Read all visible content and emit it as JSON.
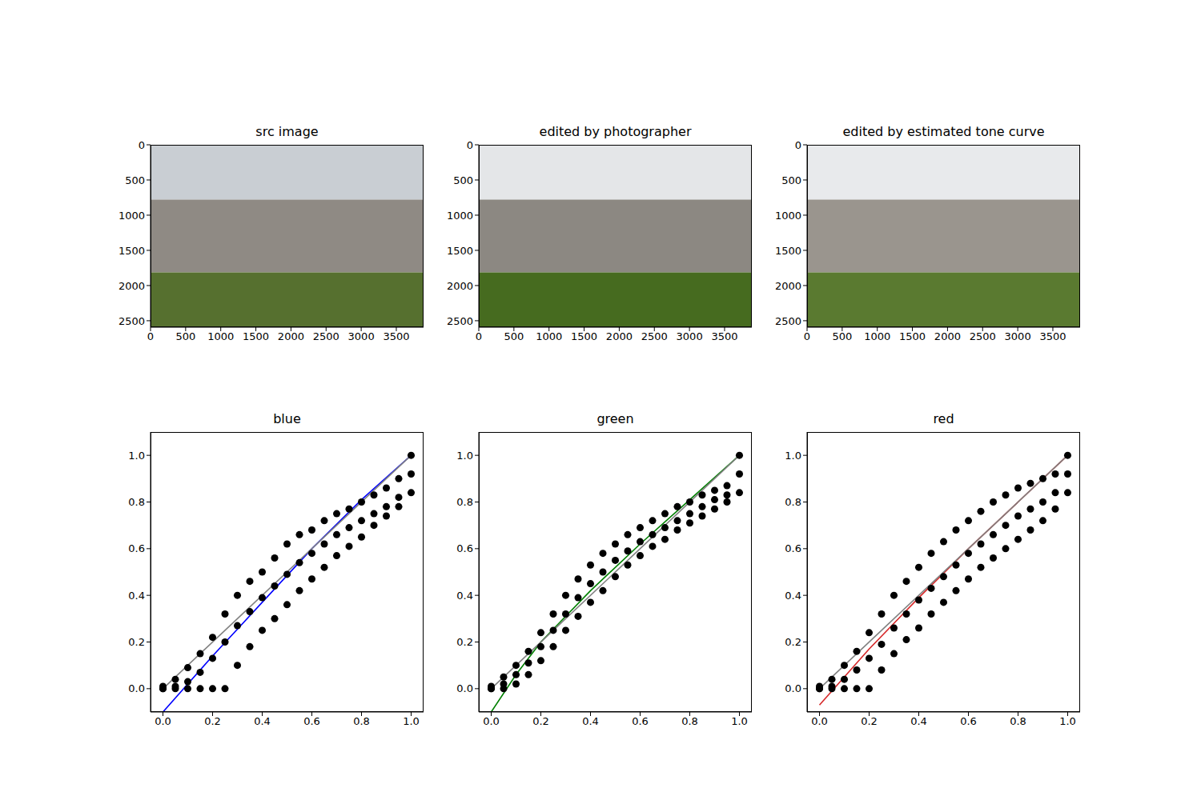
{
  "chart_data": [
    {
      "type": "image",
      "title": "src image",
      "xlim": [
        0,
        3888
      ],
      "ylim": [
        2592,
        0
      ],
      "xticks": [
        0,
        500,
        1000,
        1500,
        2000,
        2500,
        3000,
        3500
      ],
      "yticks": [
        0,
        500,
        1000,
        1500,
        2000,
        2500
      ]
    },
    {
      "type": "image",
      "title": "edited by photographer",
      "xlim": [
        0,
        3888
      ],
      "ylim": [
        2592,
        0
      ],
      "xticks": [
        0,
        500,
        1000,
        1500,
        2000,
        2500,
        3000,
        3500
      ],
      "yticks": [
        0,
        500,
        1000,
        1500,
        2000,
        2500
      ]
    },
    {
      "type": "image",
      "title": "edited by estimated tone curve",
      "xlim": [
        0,
        3888
      ],
      "ylim": [
        2592,
        0
      ],
      "xticks": [
        0,
        500,
        1000,
        1500,
        2000,
        2500,
        3000,
        3500
      ],
      "yticks": [
        0,
        500,
        1000,
        1500,
        2000,
        2500
      ]
    },
    {
      "type": "scatter",
      "title": "blue",
      "xlim": [
        -0.05,
        1.05
      ],
      "ylim": [
        -0.1,
        1.1
      ],
      "xticks": [
        {
          "value": 0,
          "label": "0.0"
        },
        0.2,
        0.4,
        0.6,
        0.8,
        {
          "value": 1,
          "label": "1.0"
        }
      ],
      "yticks": [
        {
          "value": 0,
          "label": "0.0"
        },
        0.2,
        0.4,
        0.6,
        0.8,
        {
          "value": 1,
          "label": "1.0"
        }
      ],
      "series": [
        {
          "type": "scatter",
          "marker": "circle",
          "color": "#000000",
          "x": [
            0,
            0,
            0,
            0.05,
            0.05,
            0.05,
            0.1,
            0.1,
            0.1,
            0.15,
            0.15,
            0.15,
            0.2,
            0.2,
            0.2,
            0.25,
            0.25,
            0.25,
            0.3,
            0.3,
            0.3,
            0.35,
            0.35,
            0.35,
            0.4,
            0.4,
            0.4,
            0.45,
            0.45,
            0.45,
            0.5,
            0.5,
            0.5,
            0.55,
            0.55,
            0.55,
            0.6,
            0.6,
            0.6,
            0.65,
            0.65,
            0.65,
            0.7,
            0.7,
            0.7,
            0.75,
            0.75,
            0.75,
            0.8,
            0.8,
            0.8,
            0.85,
            0.85,
            0.85,
            0.9,
            0.9,
            0.9,
            0.95,
            0.95,
            0.95,
            1,
            1,
            1
          ],
          "values": [
            0,
            0,
            0.01,
            0,
            0.01,
            0.04,
            0,
            0.03,
            0.09,
            0,
            0.07,
            0.15,
            0,
            0.13,
            0.22,
            0,
            0.2,
            0.32,
            0.1,
            0.27,
            0.4,
            0.18,
            0.33,
            0.46,
            0.25,
            0.39,
            0.5,
            0.3,
            0.44,
            0.56,
            0.36,
            0.49,
            0.62,
            0.42,
            0.54,
            0.66,
            0.47,
            0.58,
            0.68,
            0.52,
            0.62,
            0.72,
            0.57,
            0.66,
            0.75,
            0.61,
            0.69,
            0.77,
            0.65,
            0.72,
            0.8,
            0.7,
            0.75,
            0.83,
            0.74,
            0.78,
            0.86,
            0.78,
            0.82,
            0.9,
            0.84,
            0.92,
            1
          ]
        },
        {
          "type": "line",
          "line_style": "solid",
          "color": "#0000ff",
          "x": [
            0,
            0.2,
            0.4,
            0.6,
            0.8,
            1
          ],
          "values": [
            -0.1,
            0.14,
            0.37,
            0.6,
            0.81,
            1
          ]
        },
        {
          "type": "line",
          "line_style": "solid",
          "color": "#808080",
          "x": [
            0,
            1
          ],
          "values": [
            0,
            1
          ]
        }
      ]
    },
    {
      "type": "scatter",
      "title": "green",
      "xlim": [
        -0.05,
        1.05
      ],
      "ylim": [
        -0.1,
        1.1
      ],
      "xticks": [
        {
          "value": 0,
          "label": "0.0"
        },
        0.2,
        0.4,
        0.6,
        0.8,
        {
          "value": 1,
          "label": "1.0"
        }
      ],
      "yticks": [
        {
          "value": 0,
          "label": "0.0"
        },
        0.2,
        0.4,
        0.6,
        0.8,
        {
          "value": 1,
          "label": "1.0"
        }
      ],
      "series": [
        {
          "type": "scatter",
          "marker": "circle",
          "color": "#000000",
          "x": [
            0,
            0,
            0,
            0.05,
            0.05,
            0.05,
            0.1,
            0.1,
            0.1,
            0.15,
            0.15,
            0.15,
            0.2,
            0.2,
            0.2,
            0.25,
            0.25,
            0.25,
            0.3,
            0.3,
            0.3,
            0.35,
            0.35,
            0.35,
            0.4,
            0.4,
            0.4,
            0.45,
            0.45,
            0.45,
            0.5,
            0.5,
            0.5,
            0.55,
            0.55,
            0.55,
            0.6,
            0.6,
            0.6,
            0.65,
            0.65,
            0.65,
            0.7,
            0.7,
            0.7,
            0.75,
            0.75,
            0.75,
            0.8,
            0.8,
            0.8,
            0.85,
            0.85,
            0.85,
            0.9,
            0.9,
            0.9,
            0.95,
            0.95,
            0.95,
            1,
            1,
            1
          ],
          "values": [
            0,
            0,
            0.01,
            0,
            0.02,
            0.05,
            0.02,
            0.06,
            0.1,
            0.06,
            0.11,
            0.16,
            0.12,
            0.18,
            0.24,
            0.18,
            0.25,
            0.32,
            0.25,
            0.32,
            0.4,
            0.31,
            0.39,
            0.47,
            0.37,
            0.45,
            0.53,
            0.42,
            0.5,
            0.58,
            0.48,
            0.55,
            0.62,
            0.53,
            0.59,
            0.66,
            0.57,
            0.63,
            0.69,
            0.61,
            0.66,
            0.72,
            0.64,
            0.69,
            0.75,
            0.68,
            0.72,
            0.78,
            0.71,
            0.75,
            0.8,
            0.74,
            0.78,
            0.83,
            0.77,
            0.81,
            0.85,
            0.8,
            0.83,
            0.87,
            0.84,
            0.92,
            1
          ]
        },
        {
          "type": "line",
          "line_style": "solid",
          "color": "#008000",
          "x": [
            0,
            0.1,
            0.2,
            0.4,
            0.6,
            0.8,
            1
          ],
          "values": [
            -0.1,
            0.06,
            0.2,
            0.42,
            0.62,
            0.81,
            1
          ]
        },
        {
          "type": "line",
          "line_style": "solid",
          "color": "#808080",
          "x": [
            0,
            1
          ],
          "values": [
            0,
            1
          ]
        }
      ]
    },
    {
      "type": "scatter",
      "title": "red",
      "xlim": [
        -0.05,
        1.05
      ],
      "ylim": [
        -0.1,
        1.1
      ],
      "xticks": [
        {
          "value": 0,
          "label": "0.0"
        },
        0.2,
        0.4,
        0.6,
        0.8,
        {
          "value": 1,
          "label": "1.0"
        }
      ],
      "yticks": [
        {
          "value": 0,
          "label": "0.0"
        },
        0.2,
        0.4,
        0.6,
        0.8,
        {
          "value": 1,
          "label": "1.0"
        }
      ],
      "series": [
        {
          "type": "scatter",
          "marker": "circle",
          "color": "#000000",
          "x": [
            0,
            0,
            0,
            0.05,
            0.05,
            0.05,
            0.1,
            0.1,
            0.1,
            0.15,
            0.15,
            0.15,
            0.2,
            0.2,
            0.2,
            0.25,
            0.25,
            0.25,
            0.3,
            0.3,
            0.3,
            0.35,
            0.35,
            0.35,
            0.4,
            0.4,
            0.4,
            0.45,
            0.45,
            0.45,
            0.5,
            0.5,
            0.5,
            0.55,
            0.55,
            0.55,
            0.6,
            0.6,
            0.6,
            0.65,
            0.65,
            0.65,
            0.7,
            0.7,
            0.7,
            0.75,
            0.75,
            0.75,
            0.8,
            0.8,
            0.8,
            0.85,
            0.85,
            0.85,
            0.9,
            0.9,
            0.9,
            0.95,
            0.95,
            0.95,
            1,
            1,
            1
          ],
          "values": [
            0,
            0,
            0.01,
            0,
            0.01,
            0.04,
            0,
            0.04,
            0.1,
            0,
            0.08,
            0.16,
            0,
            0.13,
            0.24,
            0.08,
            0.19,
            0.32,
            0.15,
            0.26,
            0.4,
            0.21,
            0.32,
            0.46,
            0.26,
            0.38,
            0.52,
            0.32,
            0.43,
            0.58,
            0.37,
            0.48,
            0.63,
            0.42,
            0.53,
            0.68,
            0.47,
            0.58,
            0.72,
            0.52,
            0.62,
            0.76,
            0.56,
            0.66,
            0.8,
            0.6,
            0.7,
            0.83,
            0.64,
            0.74,
            0.86,
            0.68,
            0.77,
            0.88,
            0.72,
            0.8,
            0.9,
            0.77,
            0.84,
            0.92,
            0.84,
            0.92,
            1
          ]
        },
        {
          "type": "line",
          "line_style": "solid",
          "color": "#d62728",
          "x": [
            0,
            0.2,
            0.4,
            0.6,
            0.8,
            1
          ],
          "values": [
            -0.07,
            0.17,
            0.39,
            0.6,
            0.8,
            1
          ]
        },
        {
          "type": "line",
          "line_style": "solid",
          "color": "#808080",
          "x": [
            0,
            1
          ],
          "values": [
            0,
            1
          ]
        }
      ]
    }
  ]
}
